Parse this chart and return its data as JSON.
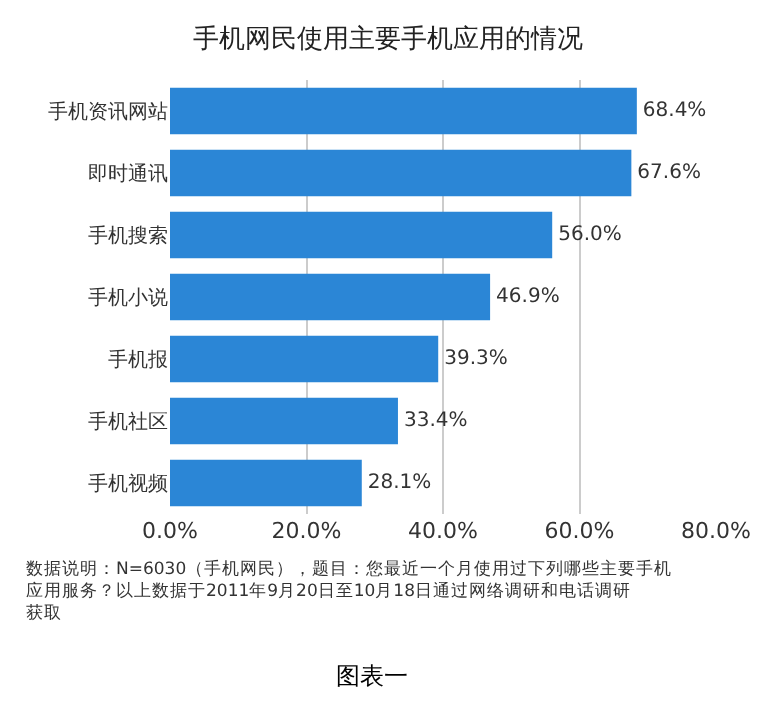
{
  "chart_data": {
    "type": "bar",
    "orientation": "horizontal",
    "title": "手机网民使用主要手机应用的情况",
    "categories": [
      "手机资讯网站",
      "即时通讯",
      "手机搜索",
      "手机小说",
      "手机报",
      "手机社区",
      "手机视频"
    ],
    "values": [
      68.4,
      67.6,
      56.0,
      46.9,
      39.3,
      33.4,
      28.1
    ],
    "value_labels": [
      "68.4%",
      "67.6%",
      "56.0%",
      "46.9%",
      "39.3%",
      "33.4%",
      "28.1%"
    ],
    "color": "#2b86d6",
    "xlim": [
      0,
      80
    ],
    "xticks": [
      {
        "value": 0,
        "label": "0.0%"
      },
      {
        "value": 20,
        "label": "20.0%"
      },
      {
        "value": 40,
        "label": "40.0%"
      },
      {
        "value": 60,
        "label": "60.0%"
      },
      {
        "value": 80,
        "label": "80.0%"
      }
    ],
    "grid": "x",
    "legend": false,
    "annotations": [
      "数据说明：N=6030（手机网民），题目：您最近一个月使用过下列哪些主要手机应用服务？以上数据于2011年9月20日至10月18日通过网络调研和电话调研获取",
      "图表一"
    ]
  }
}
